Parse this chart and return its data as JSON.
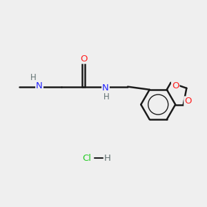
{
  "background_color": "#EFEFEF",
  "line_color": "#1a1a1a",
  "bond_width": 1.8,
  "atom_colors": {
    "N": "#2222FF",
    "O": "#FF2020",
    "C": "#1a1a1a",
    "H": "#607070",
    "Cl": "#22CC22"
  },
  "font_size": 9.5
}
